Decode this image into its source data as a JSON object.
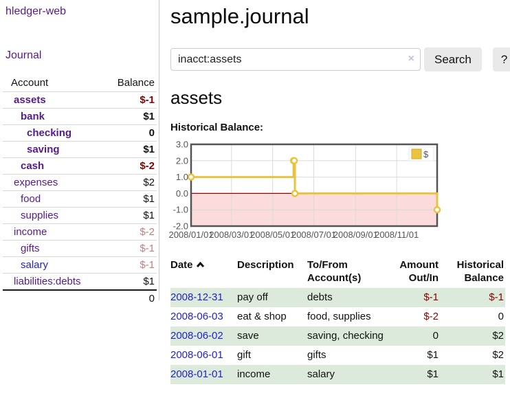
{
  "app": {
    "title": "hledger-web"
  },
  "sidebar": {
    "journal_link": "Journal",
    "account_header": "Account",
    "balance_header": "Balance",
    "accounts": [
      {
        "name": "assets",
        "level": 1,
        "bold": true,
        "balance": "$-1",
        "neg": "strong",
        "link": "purple"
      },
      {
        "name": "bank",
        "level": 2,
        "bold": true,
        "balance": "$1",
        "neg": "none",
        "link": "purple"
      },
      {
        "name": "checking",
        "level": 3,
        "bold": true,
        "balance": "0",
        "neg": "none",
        "link": "purple"
      },
      {
        "name": "saving",
        "level": 3,
        "bold": true,
        "balance": "$1",
        "neg": "none",
        "link": "purple"
      },
      {
        "name": "cash",
        "level": 2,
        "bold": true,
        "balance": "$-2",
        "neg": "strong",
        "link": "purple"
      },
      {
        "name": "expenses",
        "level": 1,
        "bold": false,
        "balance": "$2",
        "neg": "none",
        "link": "purple"
      },
      {
        "name": "food",
        "level": 2,
        "bold": false,
        "balance": "$1",
        "neg": "none",
        "link": "purple"
      },
      {
        "name": "supplies",
        "level": 2,
        "bold": false,
        "balance": "$1",
        "neg": "none",
        "link": "purple"
      },
      {
        "name": "income",
        "level": 1,
        "bold": false,
        "balance": "$-2",
        "neg": "dim",
        "link": "purple"
      },
      {
        "name": "gifts",
        "level": 2,
        "bold": false,
        "balance": "$-1",
        "neg": "dim",
        "link": "purple"
      },
      {
        "name": "salary",
        "level": 2,
        "bold": false,
        "balance": "$-1",
        "neg": "dim",
        "link": "blue"
      },
      {
        "name": "liabilities:debts",
        "level": 1,
        "bold": false,
        "balance": "$1",
        "neg": "none",
        "link": "purple"
      }
    ],
    "total_balance": "0"
  },
  "main": {
    "title": "sample.journal",
    "search": {
      "value": "inacct:assets",
      "clear_icon": "×",
      "search_button": "Search",
      "help_button": "?"
    },
    "account_heading": "assets",
    "chart_label": "Historical Balance:"
  },
  "chart_data": {
    "type": "line",
    "step": true,
    "title": "Historical Balance",
    "legend": "$",
    "legend_position": "top-right",
    "grid": true,
    "x_range": [
      "2008-01-01",
      "2008-12-31"
    ],
    "ylim": [
      -2.0,
      3.0
    ],
    "y_ticks": [
      {
        "value": 3,
        "label": "3.0"
      },
      {
        "value": 2,
        "label": "2.0"
      },
      {
        "value": 1,
        "label": "1.0"
      },
      {
        "value": 0,
        "label": "0.0"
      },
      {
        "value": -1,
        "label": "-1.0"
      },
      {
        "value": -2,
        "label": "-2.0"
      }
    ],
    "x_ticks": [
      {
        "date": "2008-01-01",
        "label": "2008/01/01"
      },
      {
        "date": "2008-03-01",
        "label": "2008/03/01"
      },
      {
        "date": "2008-05-01",
        "label": "2008/05/01"
      },
      {
        "date": "2008-07-01",
        "label": "2008/07/01"
      },
      {
        "date": "2008-09-01",
        "label": "2008/09/01"
      },
      {
        "date": "2008-11-01",
        "label": "2008/11/01"
      }
    ],
    "points": [
      {
        "date": "2008-01-01",
        "value": 1
      },
      {
        "date": "2008-06-01",
        "value": 2
      },
      {
        "date": "2008-06-02",
        "value": 2
      },
      {
        "date": "2008-06-03",
        "value": 0
      },
      {
        "date": "2008-12-31",
        "value": -1
      }
    ],
    "colors": {
      "line": "#e9c340",
      "marker_fill": "#ffffff",
      "zero_line": "#8b0000",
      "negative_region": "#fbdbdb",
      "gridline": "#dadada",
      "border": "#545454",
      "tick_label": "#545454"
    }
  },
  "transactions": {
    "headers": {
      "date": "Date",
      "description": "Description",
      "accounts": "To/From Account(s)",
      "amount": "Amount Out/In",
      "balance": "Historical Balance"
    },
    "rows": [
      {
        "date": "2008-12-31",
        "description": "pay off",
        "accounts": "debts",
        "amount": "$-1",
        "amount_neg": true,
        "balance": "$-1",
        "balance_neg": true
      },
      {
        "date": "2008-06-03",
        "description": "eat & shop",
        "accounts": "food, supplies",
        "amount": "$-2",
        "amount_neg": true,
        "balance": "0",
        "balance_neg": false
      },
      {
        "date": "2008-06-02",
        "description": "save",
        "accounts": "saving, checking",
        "amount": "0",
        "amount_neg": false,
        "balance": "$2",
        "balance_neg": false
      },
      {
        "date": "2008-06-01",
        "description": "gift",
        "accounts": "gifts",
        "amount": "$1",
        "amount_neg": false,
        "balance": "$2",
        "balance_neg": false
      },
      {
        "date": "2008-01-01",
        "description": "income",
        "accounts": "salary",
        "amount": "$1",
        "amount_neg": false,
        "balance": "$1",
        "balance_neg": false
      }
    ]
  }
}
